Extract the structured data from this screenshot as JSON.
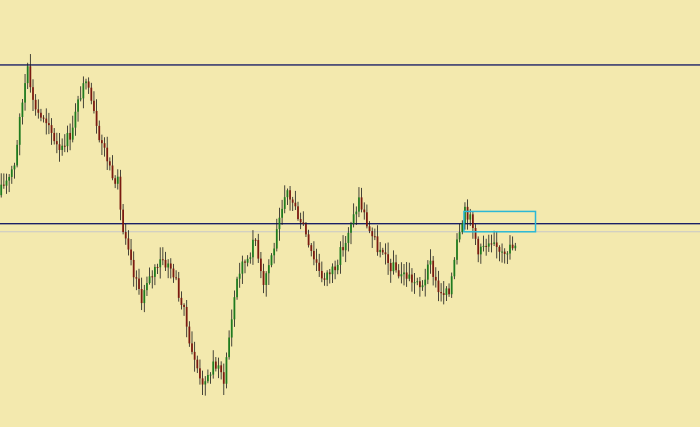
{
  "chart_data": {
    "type": "candlestick",
    "title": "",
    "xlabel": "",
    "ylabel": "",
    "grid": false,
    "legend": "none",
    "ylim": [
      0,
      100
    ],
    "x_count": 195,
    "colors": {
      "background": "#f3e9ae",
      "bull": "#1f7a1f",
      "bear": "#7a1a10",
      "wick": "#1a1a1a",
      "level_line": "#1a1f66",
      "price_line": "#c8c8c8",
      "highlight_box": "#2bb8d6"
    },
    "waypoints": [
      [
        0,
        55
      ],
      [
        6,
        63
      ],
      [
        11,
        88
      ],
      [
        13,
        78
      ],
      [
        18,
        72
      ],
      [
        23,
        67
      ],
      [
        27,
        70
      ],
      [
        31,
        80
      ],
      [
        34,
        83
      ],
      [
        38,
        70
      ],
      [
        42,
        62
      ],
      [
        45,
        58
      ],
      [
        47,
        46
      ],
      [
        51,
        35
      ],
      [
        54,
        30
      ],
      [
        57,
        34
      ],
      [
        61,
        40
      ],
      [
        66,
        36
      ],
      [
        70,
        26
      ],
      [
        74,
        14
      ],
      [
        78,
        8
      ],
      [
        81,
        14
      ],
      [
        85,
        10
      ],
      [
        90,
        35
      ],
      [
        94,
        40
      ],
      [
        97,
        44
      ],
      [
        100,
        34
      ],
      [
        103,
        40
      ],
      [
        106,
        48
      ],
      [
        109,
        56
      ],
      [
        111,
        53
      ],
      [
        115,
        48
      ],
      [
        119,
        40
      ],
      [
        123,
        34
      ],
      [
        127,
        38
      ],
      [
        132,
        45
      ],
      [
        136,
        54
      ],
      [
        139,
        48
      ],
      [
        143,
        42
      ],
      [
        147,
        38
      ],
      [
        151,
        36
      ],
      [
        155,
        35
      ],
      [
        159,
        32
      ],
      [
        163,
        38
      ],
      [
        167,
        30
      ],
      [
        170,
        31
      ],
      [
        173,
        45
      ],
      [
        176,
        52
      ],
      [
        178,
        49
      ],
      [
        181,
        42
      ]
    ],
    "horizontal_levels": [
      {
        "name": "resistance",
        "value": 87
      },
      {
        "name": "support",
        "value": 48
      }
    ],
    "price_line": 46,
    "highlight_box": {
      "x_start": 175,
      "x_end": 202,
      "y_low": 46,
      "y_high": 51
    }
  }
}
